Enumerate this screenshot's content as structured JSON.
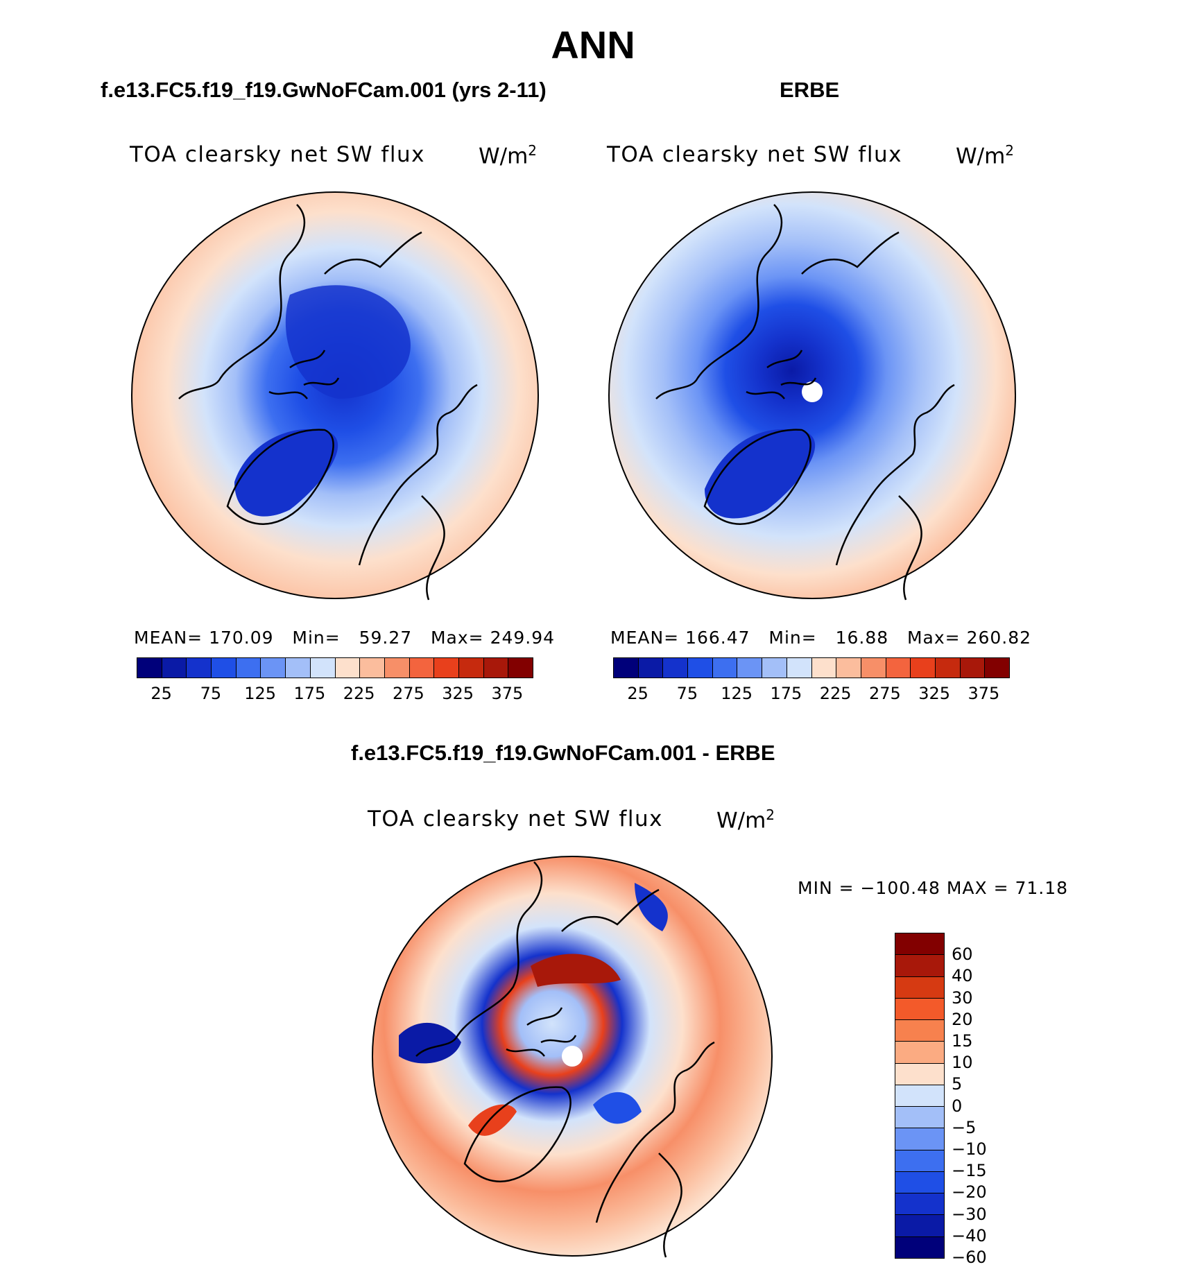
{
  "page": {
    "title": "ANN"
  },
  "panels": [
    {
      "case_title": "f.e13.FC5.f19_f19.GwNoFCam.001 (yrs 2-11)",
      "label": "TOA clearsky net SW flux",
      "units": "W/m",
      "units_sup": "2",
      "stats": {
        "mean_label": "MEAN=",
        "mean": "170.09",
        "min_label": "Min=",
        "min": "59.27",
        "max_label": "Max=",
        "max": "249.94"
      }
    },
    {
      "case_title": "ERBE",
      "label": "TOA clearsky net SW flux",
      "units": "W/m",
      "units_sup": "2",
      "stats": {
        "mean_label": "MEAN=",
        "mean": "166.47",
        "min_label": "Min=",
        "min": "16.88",
        "max_label": "Max=",
        "max": "260.82"
      }
    }
  ],
  "diff_panel": {
    "case_title": "f.e13.FC5.f19_f19.GwNoFCam.001 - ERBE",
    "label": "TOA clearsky net SW flux",
    "units": "W/m",
    "units_sup": "2",
    "minmax": "MIN = −100.48 MAX =   71.18"
  },
  "colorbar_main": {
    "colors": [
      "#00007a",
      "#0a1aa6",
      "#1432cc",
      "#1f4fe6",
      "#3d6ff0",
      "#6b94f5",
      "#a3bff8",
      "#d2e3fb",
      "#fde0cc",
      "#fbbd9d",
      "#f78f68",
      "#f3643e",
      "#e8401c",
      "#c62a0e",
      "#a8180a",
      "#820000"
    ],
    "ticks": [
      "25",
      "75",
      "125",
      "175",
      "225",
      "275",
      "325",
      "375"
    ]
  },
  "colorbar_diff": {
    "colors": [
      "#820000",
      "#a8180a",
      "#d63a12",
      "#f35a2a",
      "#f7814e",
      "#fbab82",
      "#fde0cc",
      "#d2e3fb",
      "#a3bff8",
      "#6b94f5",
      "#3d6ff0",
      "#1f4fe6",
      "#1432cc",
      "#0a1aa6",
      "#00007a"
    ],
    "ticks": [
      "60",
      "40",
      "30",
      "20",
      "15",
      "10",
      "5",
      "0",
      "−5",
      "−10",
      "−15",
      "−20",
      "−30",
      "−40",
      "−60"
    ]
  },
  "colors": {
    "land_outline": "#000000",
    "pole_hole": "#ffffff"
  }
}
